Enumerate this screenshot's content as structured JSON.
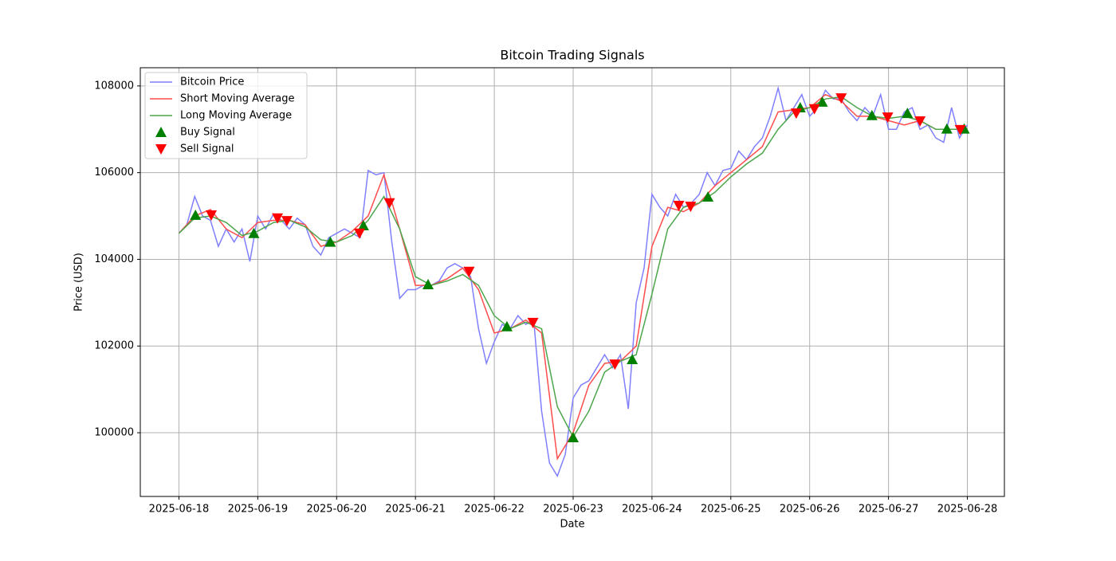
{
  "chart_data": {
    "type": "line",
    "title": "Bitcoin Trading Signals",
    "x_label": "Date",
    "y_label": "Price (USD)",
    "xlim": [
      -0.49,
      10.47
    ],
    "ylim": [
      98530,
      108420
    ],
    "xticks": [
      {
        "value": 0,
        "label": "2025-06-18"
      },
      {
        "value": 1,
        "label": "2025-06-19"
      },
      {
        "value": 2,
        "label": "2025-06-20"
      },
      {
        "value": 3,
        "label": "2025-06-21"
      },
      {
        "value": 4,
        "label": "2025-06-22"
      },
      {
        "value": 5,
        "label": "2025-06-23"
      },
      {
        "value": 6,
        "label": "2025-06-24"
      },
      {
        "value": 7,
        "label": "2025-06-25"
      },
      {
        "value": 8,
        "label": "2025-06-26"
      },
      {
        "value": 9,
        "label": "2025-06-27"
      },
      {
        "value": 10,
        "label": "2025-06-28"
      }
    ],
    "yticks": [
      100000,
      102000,
      104000,
      106000,
      108000
    ],
    "grid": true,
    "legend": "upper left",
    "series": [
      {
        "name": "Bitcoin Price",
        "type": "line",
        "color": "#7f7fff",
        "x": [
          0,
          0.1,
          0.2,
          0.3,
          0.4,
          0.5,
          0.6,
          0.7,
          0.8,
          0.9,
          1,
          1.1,
          1.2,
          1.3,
          1.4,
          1.5,
          1.6,
          1.7,
          1.8,
          1.9,
          2,
          2.1,
          2.2,
          2.3,
          2.4,
          2.5,
          2.6,
          2.7,
          2.8,
          2.9,
          3,
          3.1,
          3.2,
          3.3,
          3.4,
          3.5,
          3.6,
          3.7,
          3.8,
          3.9,
          4,
          4.1,
          4.2,
          4.3,
          4.4,
          4.5,
          4.6,
          4.7,
          4.8,
          4.9,
          5,
          5.1,
          5.2,
          5.3,
          5.4,
          5.5,
          5.6,
          5.7,
          5.8,
          5.9,
          6,
          6.1,
          6.2,
          6.3,
          6.4,
          6.5,
          6.6,
          6.7,
          6.8,
          6.9,
          7,
          7.1,
          7.2,
          7.3,
          7.4,
          7.5,
          7.6,
          7.7,
          7.8,
          7.9,
          8,
          8.1,
          8.2,
          8.3,
          8.4,
          8.5,
          8.6,
          8.7,
          8.8,
          8.9,
          9,
          9.1,
          9.2,
          9.3,
          9.4,
          9.5,
          9.6,
          9.7,
          9.8,
          9.9,
          10
        ],
        "values": [
          104600,
          104800,
          105450,
          105000,
          104900,
          104300,
          104700,
          104400,
          104700,
          103950,
          105000,
          104700,
          105050,
          104900,
          104700,
          104950,
          104800,
          104300,
          104100,
          104500,
          104600,
          104700,
          104600,
          104500,
          106050,
          105950,
          106000,
          104400,
          103100,
          103300,
          103300,
          103400,
          103400,
          103500,
          103800,
          103900,
          103800,
          103600,
          102400,
          101600,
          102100,
          102500,
          102400,
          102700,
          102500,
          102600,
          100500,
          99300,
          99000,
          99500,
          100800,
          101100,
          101200,
          101500,
          101800,
          101500,
          101800,
          100550,
          103000,
          103800,
          105500,
          105200,
          105000,
          105500,
          105200,
          105300,
          105500,
          106000,
          105700,
          106050,
          106100,
          106500,
          106300,
          106600,
          106800,
          107300,
          107950,
          107200,
          107500,
          107800,
          107300,
          107500,
          107900,
          107700,
          107700,
          107400,
          107200,
          107500,
          107300,
          107800,
          107000,
          107000,
          107400,
          107500,
          107000,
          107100,
          106800,
          106700,
          107500,
          106800,
          107100
        ]
      },
      {
        "name": "Short Moving Average",
        "type": "line",
        "color": "#ff4c4c",
        "x": [
          0,
          0.2,
          0.4,
          0.6,
          0.8,
          1,
          1.2,
          1.4,
          1.6,
          1.8,
          2,
          2.2,
          2.4,
          2.6,
          2.8,
          3,
          3.2,
          3.4,
          3.6,
          3.8,
          4,
          4.2,
          4.4,
          4.6,
          4.8,
          5,
          5.2,
          5.4,
          5.6,
          5.8,
          6,
          6.2,
          6.4,
          6.6,
          6.8,
          7,
          7.2,
          7.4,
          7.6,
          7.8,
          8,
          8.2,
          8.4,
          8.6,
          8.8,
          9,
          9.2,
          9.4,
          9.6,
          9.8,
          10
        ],
        "values": [
          104600,
          105000,
          105150,
          104700,
          104500,
          104850,
          104900,
          104900,
          104800,
          104300,
          104400,
          104650,
          105000,
          105950,
          104700,
          103400,
          103400,
          103550,
          103800,
          103300,
          102300,
          102400,
          102600,
          102300,
          99400,
          100000,
          101100,
          101600,
          101650,
          102000,
          104300,
          105200,
          105100,
          105300,
          105700,
          106000,
          106300,
          106600,
          107400,
          107450,
          107500,
          107800,
          107650,
          107300,
          107300,
          107200,
          107100,
          107200,
          107000,
          107000,
          107000
        ]
      },
      {
        "name": "Long Moving Average",
        "type": "line",
        "color": "#4ca64c",
        "x": [
          0,
          0.2,
          0.4,
          0.6,
          0.8,
          1,
          1.2,
          1.4,
          1.6,
          1.8,
          2,
          2.2,
          2.4,
          2.6,
          2.8,
          3,
          3.2,
          3.4,
          3.6,
          3.8,
          4,
          4.2,
          4.4,
          4.6,
          4.8,
          5,
          5.2,
          5.4,
          5.6,
          5.8,
          6,
          6.2,
          6.4,
          6.6,
          6.8,
          7,
          7.2,
          7.4,
          7.6,
          7.8,
          8,
          8.2,
          8.4,
          8.6,
          8.8,
          9,
          9.2,
          9.4,
          9.6,
          9.8,
          10
        ],
        "values": [
          104600,
          104950,
          105000,
          104850,
          104550,
          104650,
          104850,
          104900,
          104750,
          104450,
          104400,
          104550,
          104900,
          105450,
          104700,
          103600,
          103400,
          103500,
          103650,
          103400,
          102700,
          102400,
          102550,
          102400,
          100600,
          99900,
          100500,
          101400,
          101650,
          101800,
          103200,
          104700,
          105200,
          105300,
          105550,
          105900,
          106200,
          106450,
          107000,
          107400,
          107500,
          107700,
          107750,
          107500,
          107300,
          107250,
          107300,
          107200,
          107000,
          107000,
          107000
        ]
      },
      {
        "name": "Buy Signal",
        "type": "scatter",
        "marker": "up",
        "color": "#008000",
        "x": [
          0.21,
          0.95,
          1.92,
          2.34,
          3.16,
          4.16,
          5.0,
          5.75,
          6.71,
          7.88,
          8.16,
          8.79,
          9.24,
          9.74,
          9.96
        ],
        "values": [
          105020,
          104600,
          104400,
          104780,
          103420,
          102450,
          99890,
          101690,
          105440,
          107500,
          107630,
          107320,
          107370,
          107010,
          107010
        ]
      },
      {
        "name": "Sell Signal",
        "type": "scatter",
        "marker": "down",
        "color": "#ff0000",
        "x": [
          0.41,
          1.25,
          1.37,
          2.29,
          2.67,
          3.68,
          4.49,
          5.53,
          6.34,
          6.49,
          7.83,
          8.06,
          8.4,
          8.99,
          9.4,
          9.91
        ],
        "values": [
          105020,
          104950,
          104890,
          104600,
          105300,
          103720,
          102540,
          101580,
          105240,
          105220,
          107370,
          107470,
          107720,
          107280,
          107190,
          106990
        ]
      }
    ]
  }
}
